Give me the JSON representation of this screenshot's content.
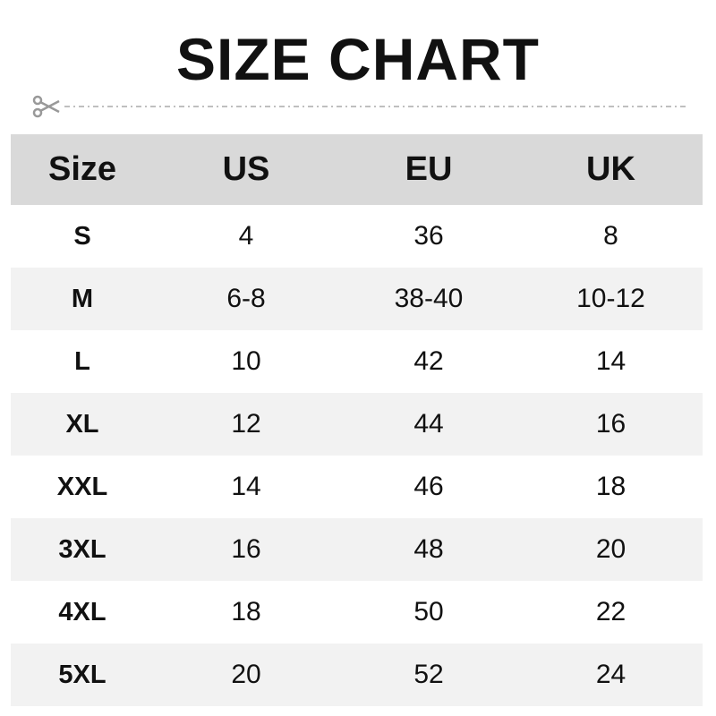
{
  "title": "SIZE CHART",
  "icons": {
    "cut_line": "scissors-icon"
  },
  "colors": {
    "header_bg": "#d9d9d9",
    "stripe_bg": "#f2f2f2",
    "text": "#111111",
    "cut_line": "#aaaaaa"
  },
  "table": {
    "headers": [
      "Size",
      "US",
      "EU",
      "UK"
    ],
    "rows": [
      [
        "S",
        "4",
        "36",
        "8"
      ],
      [
        "M",
        "6-8",
        "38-40",
        "10-12"
      ],
      [
        "L",
        "10",
        "42",
        "14"
      ],
      [
        "XL",
        "12",
        "44",
        "16"
      ],
      [
        "XXL",
        "14",
        "46",
        "18"
      ],
      [
        "3XL",
        "16",
        "48",
        "20"
      ],
      [
        "4XL",
        "18",
        "50",
        "22"
      ],
      [
        "5XL",
        "20",
        "52",
        "24"
      ]
    ]
  }
}
